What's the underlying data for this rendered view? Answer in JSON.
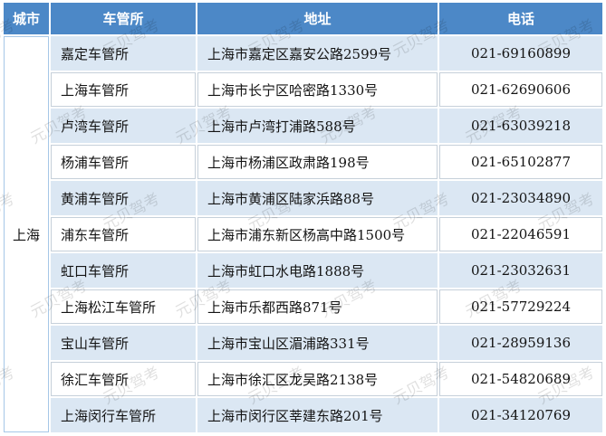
{
  "watermark": {
    "text": "元贝驾考"
  },
  "table": {
    "headers": [
      "城市",
      "车管所",
      "地址",
      "电话"
    ],
    "city": "上海",
    "rows": [
      {
        "office": "嘉定车管所",
        "address": "上海市嘉定区嘉安公路2599号",
        "phone": "021-69160899"
      },
      {
        "office": "上海车管所",
        "address": "上海市长宁区哈密路1330号",
        "phone": "021-62690606"
      },
      {
        "office": "卢湾车管所",
        "address": "上海市卢湾打浦路588号",
        "phone": "021-63039218"
      },
      {
        "office": "杨浦车管所",
        "address": "上海市杨浦区政肃路198号",
        "phone": "021-65102877"
      },
      {
        "office": "黄浦车管所",
        "address": "上海市黄浦区陆家浜路88号",
        "phone": "021-23034890"
      },
      {
        "office": "浦东车管所",
        "address": "上海市浦东新区杨高中路1500号",
        "phone": "021-22046591"
      },
      {
        "office": "虹口车管所",
        "address": "上海市虹口水电路1888号",
        "phone": "021-23032631"
      },
      {
        "office": "上海松江车管所",
        "address": "上海市乐都西路871号",
        "phone": "021-57729224"
      },
      {
        "office": "宝山车管所",
        "address": "上海市宝山区湄浦路331号",
        "phone": "021-28959136"
      },
      {
        "office": "徐汇车管所",
        "address": "上海市徐汇区龙吴路2138号",
        "phone": "021-54820689"
      },
      {
        "office": "上海闵行车管所",
        "address": "上海市闵行区莘建东路201号",
        "phone": "021-34120769"
      }
    ],
    "colors": {
      "header_bg": "#4c88c7",
      "stripe_bg": "#dbe7f3",
      "plain_border": "#c6d0da",
      "city_border": "#a6c7e7"
    }
  }
}
